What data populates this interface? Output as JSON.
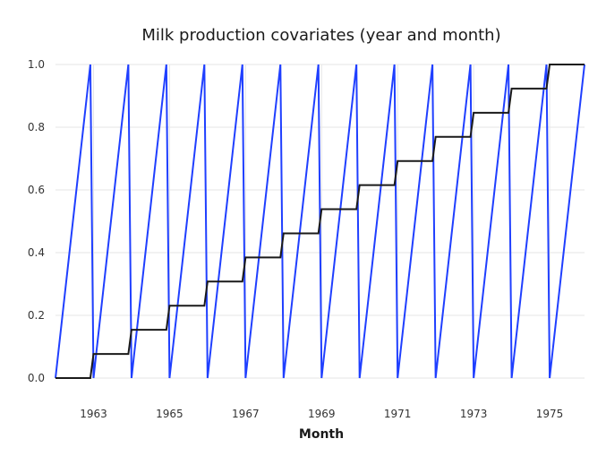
{
  "chart_data": {
    "type": "line",
    "title": "Milk production covariates (year and month)",
    "xlabel": "Month",
    "ylabel": "",
    "xlim": [
      1962.0,
      1975.917
    ],
    "ylim": [
      0.0,
      1.0
    ],
    "x_ticks": [
      1963,
      1965,
      1967,
      1969,
      1971,
      1973,
      1975
    ],
    "x_tick_labels": [
      "1963",
      "1965",
      "1967",
      "1969",
      "1971",
      "1973",
      "1975"
    ],
    "y_ticks": [
      0.0,
      0.2,
      0.4,
      0.6,
      0.8,
      1.0
    ],
    "y_tick_labels": [
      "0.0",
      "0.2",
      "0.4",
      "0.6",
      "0.8",
      "1.0"
    ],
    "grid": true,
    "legend": "none",
    "start_year": 1962,
    "end_year": 1975,
    "series": [
      {
        "pattern": "month fraction: resets to 0 each January, rises linearly to 1 in December",
        "color": "#1f3fff"
      },
      {
        "pattern": "year fraction: constant within each year, step of 1/13 per year from 0 (1962) to 1 (1975)",
        "color": "#1a1a1a"
      }
    ]
  }
}
